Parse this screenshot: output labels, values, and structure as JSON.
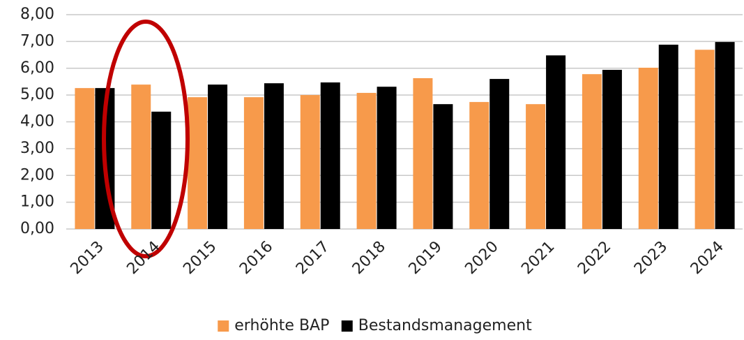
{
  "chart_data": {
    "type": "bar",
    "categories": [
      "2013",
      "2014",
      "2015",
      "2016",
      "2017",
      "2018",
      "2019",
      "2020",
      "2021",
      "2022",
      "2023",
      "2024"
    ],
    "series": [
      {
        "name": "erhöhte BAP",
        "color": "#f79a4b",
        "values": [
          5.26,
          5.39,
          4.92,
          4.92,
          5.0,
          5.08,
          5.63,
          4.74,
          4.66,
          5.78,
          6.02,
          6.69
        ]
      },
      {
        "name": "Bestandsmanagement",
        "color": "#000000",
        "values": [
          5.26,
          4.38,
          5.39,
          5.44,
          5.47,
          5.31,
          4.66,
          5.6,
          6.48,
          5.94,
          6.88,
          6.98
        ]
      }
    ],
    "ylim": [
      0,
      8
    ],
    "yticks": [
      {
        "value": 0,
        "label": "0,00"
      },
      {
        "value": 1,
        "label": "1,00"
      },
      {
        "value": 2,
        "label": "2,00"
      },
      {
        "value": 3,
        "label": "3,00"
      },
      {
        "value": 4,
        "label": "4,00"
      },
      {
        "value": 5,
        "label": "5,00"
      },
      {
        "value": 6,
        "label": "6,00"
      },
      {
        "value": 7,
        "label": "7,00"
      },
      {
        "value": 8,
        "label": "8,00"
      }
    ],
    "grid": true,
    "legend": "bottom"
  }
}
